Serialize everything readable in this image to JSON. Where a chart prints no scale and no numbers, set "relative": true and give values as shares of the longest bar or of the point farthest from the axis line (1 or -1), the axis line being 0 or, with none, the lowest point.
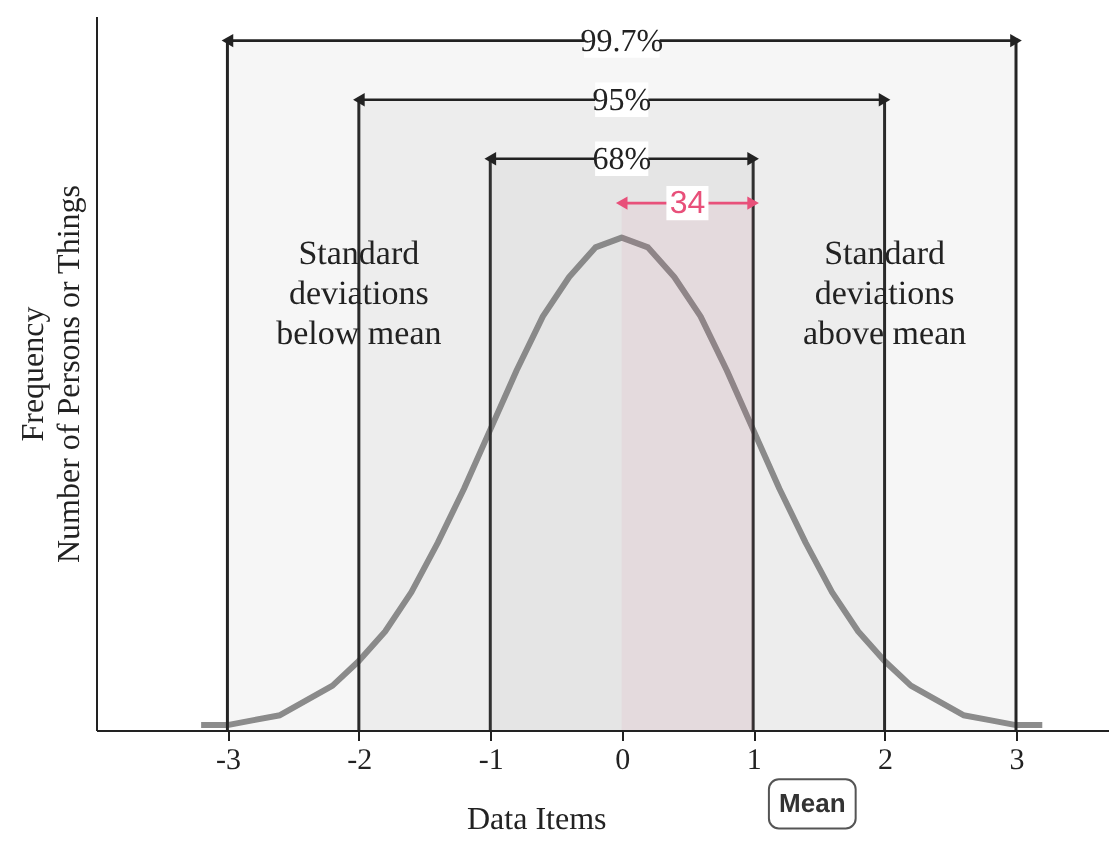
{
  "chart_data": {
    "type": "line",
    "relative": true,
    "xlabel": "Data Items",
    "ylabel": "Frequency\nNumber of Persons or Things",
    "x": [
      -3.2,
      -3.0,
      -2.8,
      -2.6,
      -2.4,
      -2.2,
      -2.0,
      -1.8,
      -1.6,
      -1.4,
      -1.2,
      -1.0,
      -0.8,
      -0.6,
      -0.4,
      -0.2,
      0,
      0.2,
      0.4,
      0.6,
      0.8,
      1.0,
      1.2,
      1.4,
      1.6,
      1.8,
      2.0,
      2.2,
      2.4,
      2.6,
      2.8,
      3.0,
      3.2
    ],
    "series": [
      {
        "color": "#8c8c8c",
        "values": [
          0.01,
          0.01,
          0.02,
          0.03,
          0.06,
          0.09,
          0.14,
          0.2,
          0.28,
          0.38,
          0.49,
          0.61,
          0.73,
          0.84,
          0.92,
          0.98,
          1,
          0.98,
          0.92,
          0.84,
          0.73,
          0.61,
          0.49,
          0.38,
          0.28,
          0.2,
          0.14,
          0.09,
          0.06,
          0.03,
          0.02,
          0.01,
          0.01
        ]
      }
    ],
    "xlim": [
      -4,
      3.7
    ],
    "xticks": [
      -3,
      -2,
      -1,
      0,
      1,
      2,
      3
    ],
    "ref_lines": [
      {
        "axis": "x",
        "value": -3
      },
      {
        "axis": "x",
        "value": -2
      },
      {
        "axis": "x",
        "value": -1
      },
      {
        "axis": "x",
        "value": 1
      },
      {
        "axis": "x",
        "value": 2
      },
      {
        "axis": "x",
        "value": 3
      }
    ],
    "bands": [
      {
        "axis": "x",
        "from": -3,
        "to": 3,
        "label": "99.7%"
      },
      {
        "axis": "x",
        "from": -2,
        "to": 2,
        "label": "95%"
      },
      {
        "axis": "x",
        "from": -1,
        "to": 1,
        "label": "68%"
      },
      {
        "axis": "x",
        "from": 0,
        "to": 1,
        "label": "34",
        "color": "#e8507a"
      }
    ],
    "annotations": [
      "Standard deviations below mean",
      "Standard deviations above mean",
      "Mean"
    ]
  }
}
